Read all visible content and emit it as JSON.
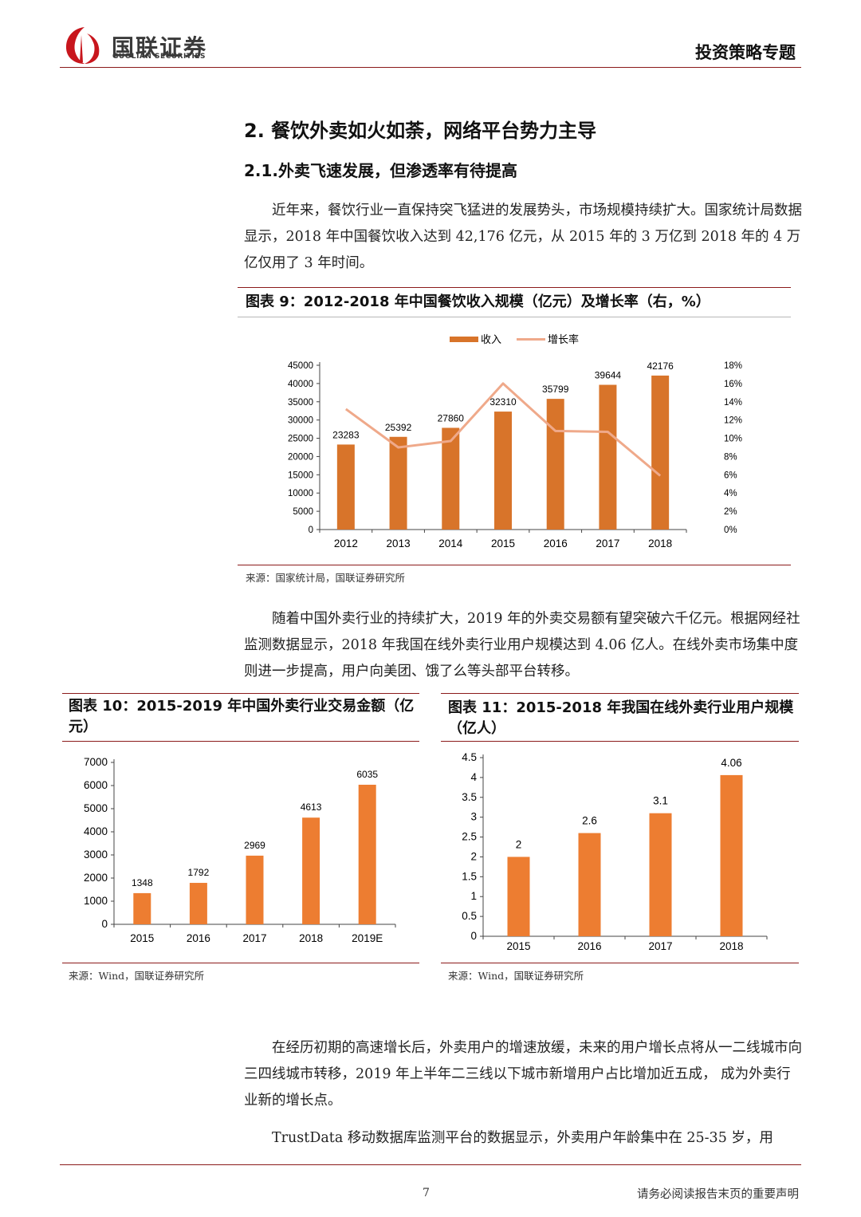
{
  "header": {
    "logo_text": "国联证券",
    "logo_subtext": "GUOLIAN SECURITIES",
    "report_type": "投资策略专题"
  },
  "section": {
    "heading": "2.  餐饮外卖如火如荼，网络平台势力主导",
    "subheading": "2.1.外卖飞速发展，但渗透率有待提高"
  },
  "paragraphs": {
    "p1": "近年来，餐饮行业一直保持突飞猛进的发展势头，市场规模持续扩大。国家统计局数据显示，2018 年中国餐饮收入达到 42,176 亿元，从 2015 年的 3 万亿到 2018 年的 4 万亿仅用了 3 年时间。",
    "p2": "随着中国外卖行业的持续扩大，2019 年的外卖交易额有望突破六千亿元。根据网经社监测数据显示，2018 年我国在线外卖行业用户规模达到 4.06 亿人。在线外卖市场集中度则进一步提高，用户向美团、饿了么等头部平台转移。",
    "p3": "在经历初期的高速增长后，外卖用户的增速放缓，未来的用户增长点将从一二线城市向三四线城市转移，2019 年上半年二三线以下城市新增用户占比增加近五成， 成为外卖行业新的增长点。",
    "p4": "TrustData 移动数据库监测平台的数据显示，外卖用户年龄集中在 25-35 岁，用"
  },
  "figures": {
    "fig9": {
      "label": "图表 9",
      "title": "：2012-2018 年中国餐饮收入规模（亿元）及增长率（右，%）",
      "source": "来源：国家统计局，国联证券研究所"
    },
    "fig10": {
      "label": "图表 10",
      "title": "：2015-2019 年中国外卖行业交易金额（亿元）",
      "source": "来源：Wind，国联证券研究所"
    },
    "fig11": {
      "label": "图表 11",
      "title": "：2015-2018 年我国在线外卖行业用户规模（亿人）",
      "source": "来源：Wind，国联证券研究所"
    }
  },
  "chart_data": [
    {
      "id": "fig9",
      "type": "bar",
      "categories": [
        "2012",
        "2013",
        "2014",
        "2015",
        "2016",
        "2017",
        "2018"
      ],
      "series": [
        {
          "name": "收入",
          "type": "bar",
          "axis": "left",
          "color": "#d8742a",
          "values": [
            23283,
            25392,
            27860,
            32310,
            35799,
            39644,
            42176
          ]
        },
        {
          "name": "增长率",
          "type": "line",
          "axis": "right",
          "color": "#efa98a",
          "values": [
            13.2,
            9.0,
            9.7,
            16.0,
            10.8,
            10.7,
            5.9
          ]
        }
      ],
      "ylim": [
        0,
        45000
      ],
      "yticks": [
        "0",
        "5000",
        "10000",
        "15000",
        "20000",
        "25000",
        "30000",
        "35000",
        "40000",
        "45000"
      ],
      "y2lim": [
        0,
        18
      ],
      "y2ticks": [
        "0%",
        "2%",
        "4%",
        "6%",
        "8%",
        "10%",
        "12%",
        "14%",
        "16%",
        "18%"
      ],
      "legend": "top-center"
    },
    {
      "id": "fig10",
      "type": "bar",
      "categories": [
        "2015",
        "2016",
        "2017",
        "2018",
        "2019E"
      ],
      "values": [
        1348,
        1792,
        2969,
        4613,
        6035
      ],
      "color": "#ed7d31",
      "ylim": [
        0,
        7000
      ],
      "yticks": [
        "0",
        "1000",
        "2000",
        "3000",
        "4000",
        "5000",
        "6000",
        "7000"
      ]
    },
    {
      "id": "fig11",
      "type": "bar",
      "categories": [
        "2015",
        "2016",
        "2017",
        "2018"
      ],
      "values": [
        2,
        2.6,
        3.1,
        4.06
      ],
      "color": "#ed7d31",
      "ylim": [
        0,
        4.5
      ],
      "yticks": [
        "0",
        "0.5",
        "1",
        "1.5",
        "2",
        "2.5",
        "3",
        "3.5",
        "4",
        "4.5"
      ]
    }
  ],
  "footer": {
    "page_number": "7",
    "disclaimer": "请务必阅读报告末页的重要声明"
  }
}
